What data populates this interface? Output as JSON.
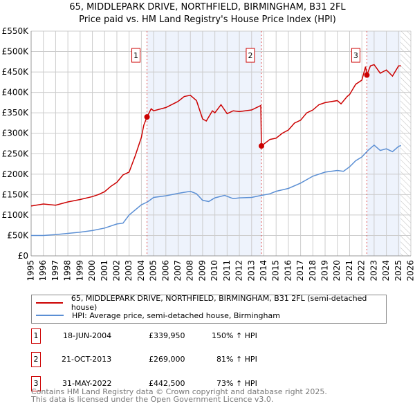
{
  "title": "65, MIDDLEPARK DRIVE, NORTHFIELD, BIRMINGHAM, B31 2FL",
  "subtitle": "Price paid vs. HM Land Registry's House Price Index (HPI)",
  "colors": {
    "property": "#cc0000",
    "hpi": "#5b8fd4",
    "shade": "#eef3fc",
    "grid": "#cccccc"
  },
  "chart_data": {
    "type": "line",
    "xlim": [
      1995,
      2026
    ],
    "ylim": [
      0,
      550000
    ],
    "x_ticks": [
      "1995",
      "1996",
      "1997",
      "1998",
      "1999",
      "2000",
      "2001",
      "2002",
      "2003",
      "2004",
      "2005",
      "2006",
      "2007",
      "2008",
      "2009",
      "2010",
      "2011",
      "2012",
      "2013",
      "2014",
      "2015",
      "2016",
      "2017",
      "2018",
      "2019",
      "2020",
      "2021",
      "2022",
      "2023",
      "2024",
      "2025",
      "2026"
    ],
    "y_ticks": [
      {
        "v": 0,
        "label": "£0"
      },
      {
        "v": 50000,
        "label": "£50K"
      },
      {
        "v": 100000,
        "label": "£100K"
      },
      {
        "v": 150000,
        "label": "£150K"
      },
      {
        "v": 200000,
        "label": "£200K"
      },
      {
        "v": 250000,
        "label": "£250K"
      },
      {
        "v": 300000,
        "label": "£300K"
      },
      {
        "v": 350000,
        "label": "£350K"
      },
      {
        "v": 400000,
        "label": "£400K"
      },
      {
        "v": 450000,
        "label": "£450K"
      },
      {
        "v": 500000,
        "label": "£500K"
      },
      {
        "v": 550000,
        "label": "£550K"
      }
    ],
    "grid": true,
    "series": [
      {
        "name": "65, MIDDLEPARK DRIVE, NORTHFIELD, BIRMINGHAM, B31 2FL (semi-detached house)",
        "color": "#cc0000",
        "points": [
          [
            1995,
            122000
          ],
          [
            1996,
            127000
          ],
          [
            1997,
            124000
          ],
          [
            1998,
            132000
          ],
          [
            1999,
            138000
          ],
          [
            2000,
            145000
          ],
          [
            2000.5,
            150000
          ],
          [
            2001,
            157000
          ],
          [
            2001.5,
            170000
          ],
          [
            2002,
            180000
          ],
          [
            2002.5,
            198000
          ],
          [
            2003,
            205000
          ],
          [
            2003.5,
            245000
          ],
          [
            2004,
            290000
          ],
          [
            2004.2,
            320000
          ],
          [
            2004.46,
            339950
          ],
          [
            2004.8,
            360000
          ],
          [
            2005,
            355000
          ],
          [
            2006,
            363000
          ],
          [
            2007,
            378000
          ],
          [
            2007.5,
            390000
          ],
          [
            2008,
            393000
          ],
          [
            2008.5,
            380000
          ],
          [
            2009,
            335000
          ],
          [
            2009.3,
            330000
          ],
          [
            2009.8,
            355000
          ],
          [
            2010,
            350000
          ],
          [
            2010.5,
            370000
          ],
          [
            2011,
            348000
          ],
          [
            2011.5,
            355000
          ],
          [
            2012,
            353000
          ],
          [
            2013,
            357000
          ],
          [
            2013.75,
            368000
          ],
          [
            2013.8,
            269000
          ],
          [
            2014.5,
            285000
          ],
          [
            2015,
            288000
          ],
          [
            2015.5,
            300000
          ],
          [
            2016,
            308000
          ],
          [
            2016.5,
            325000
          ],
          [
            2017,
            332000
          ],
          [
            2017.5,
            350000
          ],
          [
            2018,
            357000
          ],
          [
            2018.5,
            370000
          ],
          [
            2019,
            375000
          ],
          [
            2020,
            380000
          ],
          [
            2020.3,
            372000
          ],
          [
            2020.8,
            390000
          ],
          [
            2021,
            395000
          ],
          [
            2021.5,
            420000
          ],
          [
            2022,
            430000
          ],
          [
            2022.3,
            463000
          ],
          [
            2022.41,
            442500
          ],
          [
            2022.7,
            465000
          ],
          [
            2023,
            468000
          ],
          [
            2023.5,
            447000
          ],
          [
            2024,
            455000
          ],
          [
            2024.5,
            440000
          ],
          [
            2025,
            465000
          ],
          [
            2025.2,
            465000
          ]
        ]
      },
      {
        "name": "HPI: Average price, semi-detached house, Birmingham",
        "color": "#5b8fd4",
        "points": [
          [
            1995,
            50000
          ],
          [
            1996,
            50000
          ],
          [
            1997,
            52000
          ],
          [
            1998,
            55000
          ],
          [
            1999,
            58000
          ],
          [
            2000,
            62000
          ],
          [
            2001,
            68000
          ],
          [
            2002,
            78000
          ],
          [
            2002.5,
            80000
          ],
          [
            2003,
            100000
          ],
          [
            2004,
            125000
          ],
          [
            2004.5,
            132000
          ],
          [
            2005,
            143000
          ],
          [
            2006,
            147000
          ],
          [
            2007,
            153000
          ],
          [
            2008,
            158000
          ],
          [
            2008.5,
            152000
          ],
          [
            2009,
            136000
          ],
          [
            2009.5,
            133000
          ],
          [
            2010,
            142000
          ],
          [
            2010.8,
            148000
          ],
          [
            2011.5,
            140000
          ],
          [
            2012,
            142000
          ],
          [
            2013,
            143000
          ],
          [
            2013.8,
            148000
          ],
          [
            2014.5,
            152000
          ],
          [
            2015,
            158000
          ],
          [
            2016,
            165000
          ],
          [
            2017,
            178000
          ],
          [
            2018,
            195000
          ],
          [
            2019,
            205000
          ],
          [
            2020,
            209000
          ],
          [
            2020.5,
            207000
          ],
          [
            2021,
            218000
          ],
          [
            2021.5,
            233000
          ],
          [
            2022,
            242000
          ],
          [
            2022.5,
            258000
          ],
          [
            2023,
            271000
          ],
          [
            2023.5,
            258000
          ],
          [
            2024,
            262000
          ],
          [
            2024.5,
            255000
          ],
          [
            2025,
            268000
          ],
          [
            2025.2,
            270000
          ]
        ]
      }
    ],
    "sales": [
      {
        "n": "1",
        "x": 2004.46,
        "y": 339950,
        "date": "18-JUN-2004",
        "price": "£339,950",
        "hpi": "150% ↑ HPI"
      },
      {
        "n": "2",
        "x": 2013.8,
        "y": 269000,
        "date": "21-OCT-2013",
        "price": "£269,000",
        "hpi": "81% ↑ HPI"
      },
      {
        "n": "3",
        "x": 2022.41,
        "y": 442500,
        "date": "31-MAY-2022",
        "price": "£442,500",
        "hpi": "73% ↑ HPI"
      }
    ],
    "shaded_ranges": [
      [
        2004.46,
        2013.8
      ],
      [
        2022.41,
        2025.15
      ]
    ],
    "forecast_from": 2025.15,
    "legend_position": "below"
  },
  "footer": {
    "line1": "Contains HM Land Registry data © Crown copyright and database right 2025.",
    "line2": "This data is licensed under the Open Government Licence v3.0."
  }
}
